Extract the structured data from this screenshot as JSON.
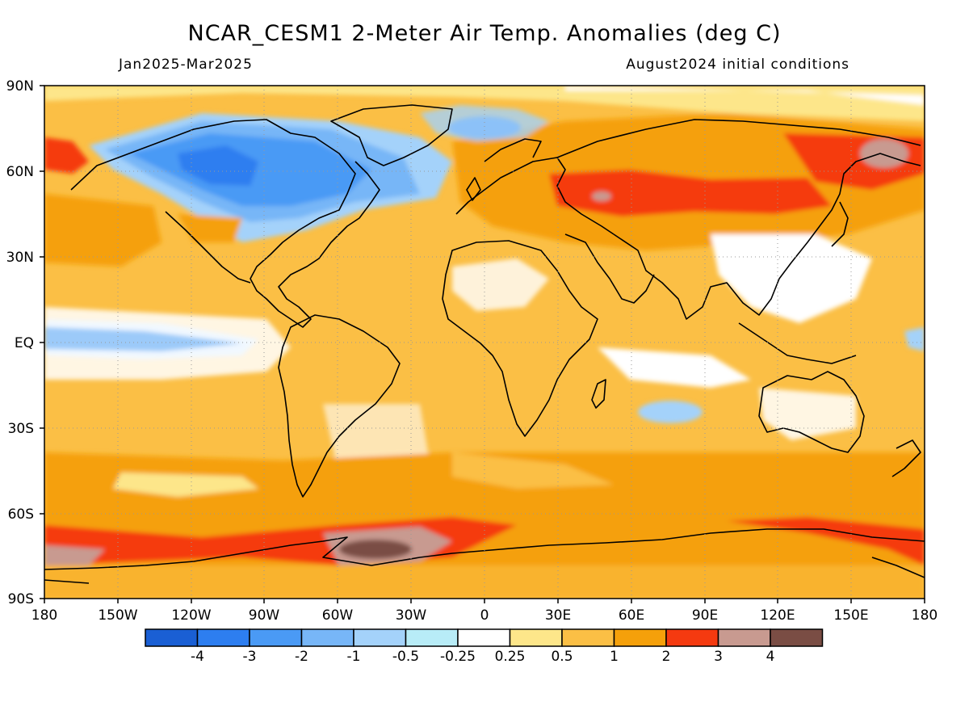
{
  "header": {
    "title": "NCAR_CESM1 2-Meter Air Temp. Anomalies (deg C)",
    "period": "Jan2025-Mar2025",
    "init": "August2024 initial conditions"
  },
  "map": {
    "lat_labels": [
      "90N",
      "60N",
      "30N",
      "EQ",
      "30S",
      "60S",
      "90S"
    ],
    "lon_labels": [
      "180",
      "150W",
      "120W",
      "90W",
      "60W",
      "30W",
      "0",
      "30E",
      "60E",
      "90E",
      "120E",
      "150E",
      "180"
    ],
    "grid": "dotted",
    "projection": "cylindrical equidistant"
  },
  "legend": {
    "labels": [
      "-4",
      "-3",
      "-2",
      "-1",
      "-0.5",
      "-0.25",
      "0.25",
      "0.5",
      "1",
      "2",
      "3",
      "4"
    ],
    "colors": [
      "#1a5fd4",
      "#2d7ef0",
      "#4a9af5",
      "#77b6f7",
      "#a4d2fa",
      "#b8ecf7",
      "#ffffff",
      "#fde68a",
      "#fbbf45",
      "#f5a00a",
      "#f53a10",
      "#c89a90",
      "#7a4d44"
    ]
  },
  "colors": {
    "land_outline": "#000000",
    "background": "#ffffff"
  }
}
